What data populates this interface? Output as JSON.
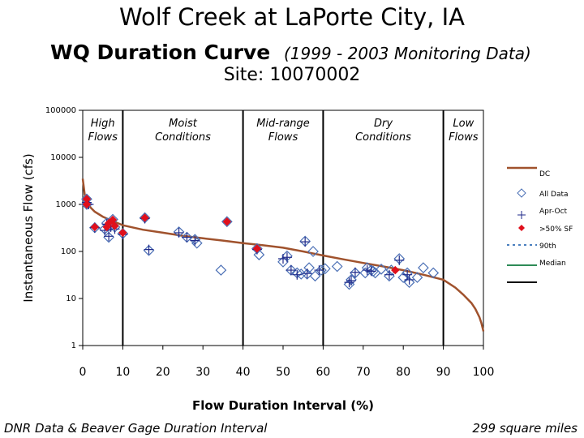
{
  "header": {
    "title": "Wolf Creek at LaPorte City, IA",
    "subtitle": "WQ Duration Curve",
    "period": "(1999 - 2003 Monitoring Data)",
    "site": "Site:  10070002"
  },
  "footer": {
    "left": "DNR Data & Beaver Gage Duration Interval",
    "right": "299 square miles"
  },
  "colors": {
    "curve": "#a0522d",
    "data_marker": "#4a6fb5",
    "plus": "#1f2a8a",
    "sf_marker": "#e0101c",
    "p90": "#4a7fbf",
    "median": "#2e8b57"
  },
  "chart_data": {
    "type": "line",
    "xlabel": "Flow Duration Interval (%)",
    "ylabel": "Instantaneous Flow (cfs)",
    "xlim": [
      0,
      100
    ],
    "ylim": [
      1,
      100000
    ],
    "y_scale": "log",
    "x_ticks": [
      "0",
      "10",
      "20",
      "30",
      "40",
      "50",
      "60",
      "70",
      "80",
      "90",
      "100"
    ],
    "y_ticks": [
      "100000",
      "10000",
      "1000",
      "100",
      "10",
      "1"
    ],
    "zones": [
      {
        "label": "High Flows",
        "from": 0,
        "to": 10
      },
      {
        "label": "Moist Conditions",
        "from": 10,
        "to": 40
      },
      {
        "label": "Mid-range Flows",
        "from": 40,
        "to": 60
      },
      {
        "label": "Dry Conditions",
        "from": 60,
        "to": 90
      },
      {
        "label": "Low Flows",
        "from": 90,
        "to": 100
      }
    ],
    "legend": [
      "DC",
      "All Data",
      "Apr-Oct",
      ">50% SF",
      "90th",
      "Median"
    ],
    "legend_position": "right",
    "series": [
      {
        "name": "DC",
        "x": [
          0,
          0.5,
          1,
          2,
          3,
          5,
          7,
          10,
          15,
          20,
          25,
          30,
          35,
          40,
          45,
          50,
          55,
          60,
          65,
          70,
          75,
          80,
          85,
          90,
          93,
          95,
          97,
          98,
          99,
          99.5,
          100
        ],
        "y": [
          3500,
          1600,
          1150,
          850,
          700,
          550,
          460,
          360,
          290,
          250,
          215,
          190,
          170,
          150,
          135,
          120,
          100,
          82,
          68,
          57,
          48,
          40,
          32,
          25,
          17,
          12,
          8,
          6,
          4,
          3,
          2
        ]
      },
      {
        "name": "All Data",
        "points": [
          [
            1,
            1300
          ],
          [
            1,
            1000
          ],
          [
            3,
            320
          ],
          [
            5.5,
            300
          ],
          [
            6,
            400
          ],
          [
            6.5,
            200
          ],
          [
            7,
            350
          ],
          [
            7.5,
            480
          ],
          [
            8,
            330
          ],
          [
            10,
            240
          ],
          [
            15.5,
            520
          ],
          [
            16.5,
            105
          ],
          [
            24,
            260
          ],
          [
            26,
            200
          ],
          [
            28,
            180
          ],
          [
            28.5,
            150
          ],
          [
            34.5,
            40
          ],
          [
            36,
            430
          ],
          [
            43.5,
            115
          ],
          [
            44,
            85
          ],
          [
            50,
            60
          ],
          [
            51,
            80
          ],
          [
            52,
            40
          ],
          [
            53.5,
            35
          ],
          [
            54.5,
            33
          ],
          [
            55.5,
            165
          ],
          [
            56,
            33
          ],
          [
            56.5,
            45
          ],
          [
            57.5,
            100
          ],
          [
            58,
            30
          ],
          [
            59.5,
            40
          ],
          [
            60.5,
            43
          ],
          [
            63.5,
            48
          ],
          [
            66.5,
            20
          ],
          [
            67,
            25
          ],
          [
            68,
            35
          ],
          [
            70.5,
            35
          ],
          [
            71,
            45
          ],
          [
            72,
            40
          ],
          [
            72.5,
            38
          ],
          [
            73,
            35
          ],
          [
            74.5,
            42
          ],
          [
            76.5,
            30
          ],
          [
            77,
            40
          ],
          [
            79,
            70
          ],
          [
            80,
            28
          ],
          [
            81,
            35
          ],
          [
            81.5,
            22
          ],
          [
            83.5,
            28
          ],
          [
            85,
            45
          ],
          [
            87.5,
            35
          ]
        ]
      },
      {
        "name": "Apr-Oct",
        "points": [
          [
            1,
            1100
          ],
          [
            1.5,
            1000
          ],
          [
            3,
            320
          ],
          [
            5.5,
            280
          ],
          [
            6,
            380
          ],
          [
            6.5,
            210
          ],
          [
            7,
            330
          ],
          [
            8,
            300
          ],
          [
            10,
            230
          ],
          [
            15.5,
            500
          ],
          [
            16.5,
            110
          ],
          [
            24,
            250
          ],
          [
            26,
            200
          ],
          [
            28,
            170
          ],
          [
            43.5,
            110
          ],
          [
            50,
            70
          ],
          [
            51,
            75
          ],
          [
            52,
            40
          ],
          [
            53.5,
            32
          ],
          [
            55.5,
            160
          ],
          [
            56,
            34
          ],
          [
            59,
            40
          ],
          [
            66.5,
            22
          ],
          [
            67,
            24
          ],
          [
            68,
            36
          ],
          [
            71,
            40
          ],
          [
            72,
            38
          ],
          [
            76.5,
            32
          ],
          [
            79,
            65
          ],
          [
            81,
            32
          ],
          [
            81.5,
            25
          ]
        ]
      },
      {
        "name": ">50% SF",
        "points": [
          [
            1,
            1300
          ],
          [
            1,
            1000
          ],
          [
            3,
            330
          ],
          [
            6,
            330
          ],
          [
            6.5,
            400
          ],
          [
            7.5,
            470
          ],
          [
            8,
            350
          ],
          [
            10,
            250
          ],
          [
            15.5,
            520
          ],
          [
            36,
            430
          ],
          [
            43.5,
            115
          ],
          [
            78,
            40
          ]
        ]
      }
    ]
  }
}
